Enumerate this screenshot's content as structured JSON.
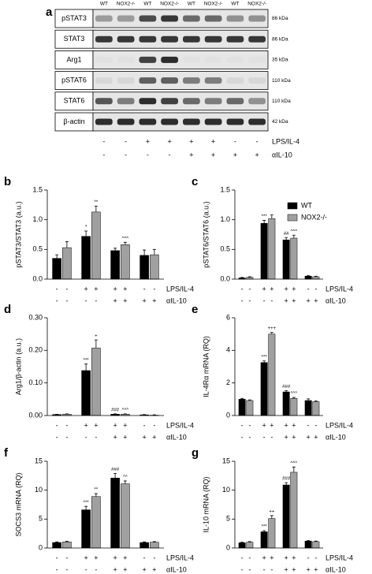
{
  "blot": {
    "panel_label": "a",
    "lanes": [
      "WT",
      "NOX2-/-",
      "WT",
      "NOX2-/-",
      "WT",
      "NOX2-/-",
      "WT",
      "NOX2-/-"
    ],
    "rows": [
      {
        "name": "pSTAT3",
        "size": "86 kDa",
        "intensity": [
          0.35,
          0.35,
          0.75,
          0.85,
          0.6,
          0.6,
          0.4,
          0.4
        ]
      },
      {
        "name": "STAT3",
        "size": "86 kDa",
        "intensity": [
          0.85,
          0.85,
          0.85,
          0.85,
          0.85,
          0.85,
          0.85,
          0.85
        ]
      },
      {
        "name": "Arg1",
        "size": "35 kDa",
        "intensity": [
          0,
          0,
          0.8,
          0.9,
          0,
          0,
          0,
          0
        ]
      },
      {
        "name": "pSTAT6",
        "size": "110 kDa",
        "intensity": [
          0.05,
          0.05,
          0.65,
          0.65,
          0.5,
          0.5,
          0.05,
          0.05
        ]
      },
      {
        "name": "STAT6",
        "size": "110 kDa",
        "intensity": [
          0.7,
          0.5,
          0.9,
          0.8,
          0.6,
          0.5,
          0.6,
          0.4
        ]
      },
      {
        "name": "β-actin",
        "size": "42 kDa",
        "intensity": [
          0.9,
          0.9,
          0.9,
          0.9,
          0.9,
          0.9,
          0.9,
          0.9
        ]
      }
    ],
    "treatments": [
      {
        "label": "LPS/IL-4",
        "signs": [
          "-",
          "-",
          "+",
          "+",
          "+",
          "+",
          "-",
          "-"
        ]
      },
      {
        "label": "αIL-10",
        "signs": [
          "-",
          "-",
          "-",
          "-",
          "+",
          "+",
          "+",
          "+"
        ]
      }
    ]
  },
  "chart_data": [
    {
      "type": "bar",
      "panel_label": "b",
      "y_label": "pSTAT3/STAT3 (a.u.)",
      "ylim": [
        0,
        1.5
      ],
      "yticks": [
        {
          "value": 0,
          "label": "0.0"
        },
        0.5,
        {
          "value": 1,
          "label": "1.0"
        },
        1.5
      ],
      "series": [
        {
          "name": "WT",
          "color": "#000000",
          "values": [
            0.35,
            0.72,
            0.48,
            0.4
          ],
          "errors": [
            0.06,
            0.09,
            0.04,
            0.09
          ],
          "annotations": [
            null,
            "*",
            null,
            null
          ]
        },
        {
          "name": "NOX2-/-",
          "color": "#a0a0a0",
          "values": [
            0.53,
            1.13,
            0.58,
            0.41
          ],
          "errors": [
            0.1,
            0.1,
            0.04,
            0.09
          ],
          "annotations": [
            null,
            "**",
            "^^^",
            null
          ]
        }
      ],
      "treatments": [
        {
          "label": "LPS/IL-4",
          "signs": [
            "-",
            "-",
            "+",
            "+",
            "+",
            "+",
            "-",
            "-"
          ]
        },
        {
          "label": "αIL-10",
          "signs": [
            "-",
            "-",
            "-",
            "-",
            "+",
            "+",
            "+",
            "+"
          ]
        }
      ]
    },
    {
      "type": "bar",
      "panel_label": "c",
      "y_label": "pSTAT6/STAT6 (a.u.)",
      "ylim": [
        0,
        1.5
      ],
      "yticks": [
        {
          "value": 0,
          "label": "0.0"
        },
        0.5,
        {
          "value": 1,
          "label": "1.0"
        },
        1.5
      ],
      "legend": "top-right",
      "series": [
        {
          "name": "WT",
          "color": "#000000",
          "values": [
            0.02,
            0.94,
            0.66,
            0.05
          ],
          "errors": [
            0.01,
            0.05,
            0.04,
            0.01
          ],
          "annotations": [
            null,
            "***",
            "##",
            null
          ]
        },
        {
          "name": "NOX2-/-",
          "color": "#a0a0a0",
          "values": [
            0.03,
            1.02,
            0.69,
            0.04
          ],
          "errors": [
            0.01,
            0.06,
            0.05,
            0.01
          ],
          "annotations": [
            null,
            null,
            "^^^",
            null
          ]
        }
      ],
      "treatments": [
        {
          "label": "LPS/IL-4",
          "signs": [
            "-",
            "-",
            "+",
            "+",
            "+",
            "+",
            "-",
            "-"
          ]
        },
        {
          "label": "αIL-10",
          "signs": [
            "-",
            "-",
            "-",
            "-",
            "+",
            "+",
            "+",
            "+"
          ]
        }
      ]
    },
    {
      "type": "bar",
      "panel_label": "d",
      "y_label": "Arg1/β-actin (a.u.)",
      "ylim": [
        0,
        0.3
      ],
      "yticks": [
        {
          "value": 0,
          "label": "0.00"
        },
        {
          "value": 0.1,
          "label": "0.10"
        },
        {
          "value": 0.2,
          "label": "0.20"
        },
        {
          "value": 0.3,
          "label": "0.30"
        }
      ],
      "series": [
        {
          "name": "WT",
          "color": "#000000",
          "values": [
            0.003,
            0.138,
            0.004,
            0.002
          ],
          "errors": [
            0.001,
            0.02,
            0.001,
            0.001
          ],
          "annotations": [
            null,
            "***",
            "###",
            null
          ]
        },
        {
          "name": "NOX2-/-",
          "color": "#a0a0a0",
          "values": [
            0.004,
            0.207,
            0.004,
            0.001
          ],
          "errors": [
            0.001,
            0.025,
            0.001,
            0.001
          ],
          "annotations": [
            null,
            "+",
            "^^^",
            null
          ]
        }
      ],
      "treatments": [
        {
          "label": "LPS/IL-4",
          "signs": [
            "-",
            "-",
            "+",
            "+",
            "+",
            "+",
            "-",
            "-"
          ]
        },
        {
          "label": "αIL-10",
          "signs": [
            "-",
            "-",
            "-",
            "-",
            "+",
            "+",
            "+",
            "+"
          ]
        }
      ]
    },
    {
      "type": "bar",
      "panel_label": "e",
      "y_label": "IL-4Rα mRNA (RQ)",
      "ylim": [
        0,
        6
      ],
      "yticks": [
        0,
        2,
        4,
        6
      ],
      "series": [
        {
          "name": "WT",
          "color": "#000000",
          "values": [
            1.0,
            3.25,
            1.45,
            0.92
          ],
          "errors": [
            0.05,
            0.1,
            0.08,
            0.1
          ],
          "annotations": [
            null,
            "***",
            "###",
            null
          ]
        },
        {
          "name": "NOX2-/-",
          "color": "#a0a0a0",
          "values": [
            0.92,
            5.0,
            1.05,
            0.85
          ],
          "errors": [
            0.04,
            0.1,
            0.06,
            0.05
          ],
          "annotations": [
            null,
            "+++",
            "^^^",
            null
          ]
        }
      ],
      "treatments": [
        {
          "label": "LPS/IL-4",
          "signs": [
            "-",
            "-",
            "+",
            "+",
            "+",
            "+",
            "-",
            "-"
          ]
        },
        {
          "label": "αIL-10",
          "signs": [
            "-",
            "-",
            "-",
            "-",
            "+",
            "+",
            "+",
            "+"
          ]
        }
      ]
    },
    {
      "type": "bar",
      "panel_label": "f",
      "y_label": "SOCS3 mRNA (RQ)",
      "ylim": [
        0,
        15
      ],
      "yticks": [
        0,
        5,
        10,
        15
      ],
      "series": [
        {
          "name": "WT",
          "color": "#000000",
          "values": [
            0.95,
            6.6,
            12.1,
            0.95
          ],
          "errors": [
            0.1,
            0.6,
            0.8,
            0.1
          ],
          "annotations": [
            null,
            "***",
            "###",
            null
          ]
        },
        {
          "name": "NOX2-/-",
          "color": "#a0a0a0",
          "values": [
            1.05,
            8.9,
            11.1,
            1.0
          ],
          "errors": [
            0.1,
            0.5,
            0.5,
            0.1
          ],
          "annotations": [
            null,
            "**",
            "^^",
            null
          ]
        }
      ],
      "treatments": [
        {
          "label": "LPS/IL-4",
          "signs": [
            "-",
            "-",
            "+",
            "+",
            "+",
            "+",
            "-",
            "-"
          ]
        },
        {
          "label": "αIL-10",
          "signs": [
            "-",
            "-",
            "-",
            "-",
            "+",
            "+",
            "+",
            "+"
          ]
        }
      ]
    },
    {
      "type": "bar",
      "panel_label": "g",
      "y_label": "IL-10 mRNA (RQ)",
      "ylim": [
        0,
        15
      ],
      "yticks": [
        0,
        5,
        10,
        15
      ],
      "series": [
        {
          "name": "WT",
          "color": "#000000",
          "values": [
            0.9,
            2.8,
            10.9,
            1.2
          ],
          "errors": [
            0.1,
            0.2,
            0.4,
            0.1
          ],
          "annotations": [
            null,
            "***",
            "###",
            null
          ]
        },
        {
          "name": "NOX2-/-",
          "color": "#a0a0a0",
          "values": [
            1.0,
            5.1,
            13.1,
            1.1
          ],
          "errors": [
            0.1,
            0.5,
            0.9,
            0.1
          ],
          "annotations": [
            null,
            "++",
            "^^^",
            null
          ]
        }
      ],
      "treatments": [
        {
          "label": "LPS/IL-4",
          "signs": [
            "-",
            "-",
            "+",
            "+",
            "+",
            "+",
            "-",
            "-"
          ]
        },
        {
          "label": "αIL-10",
          "signs": [
            "-",
            "-",
            "-",
            "-",
            "+",
            "+",
            "+",
            "+"
          ]
        }
      ]
    }
  ]
}
